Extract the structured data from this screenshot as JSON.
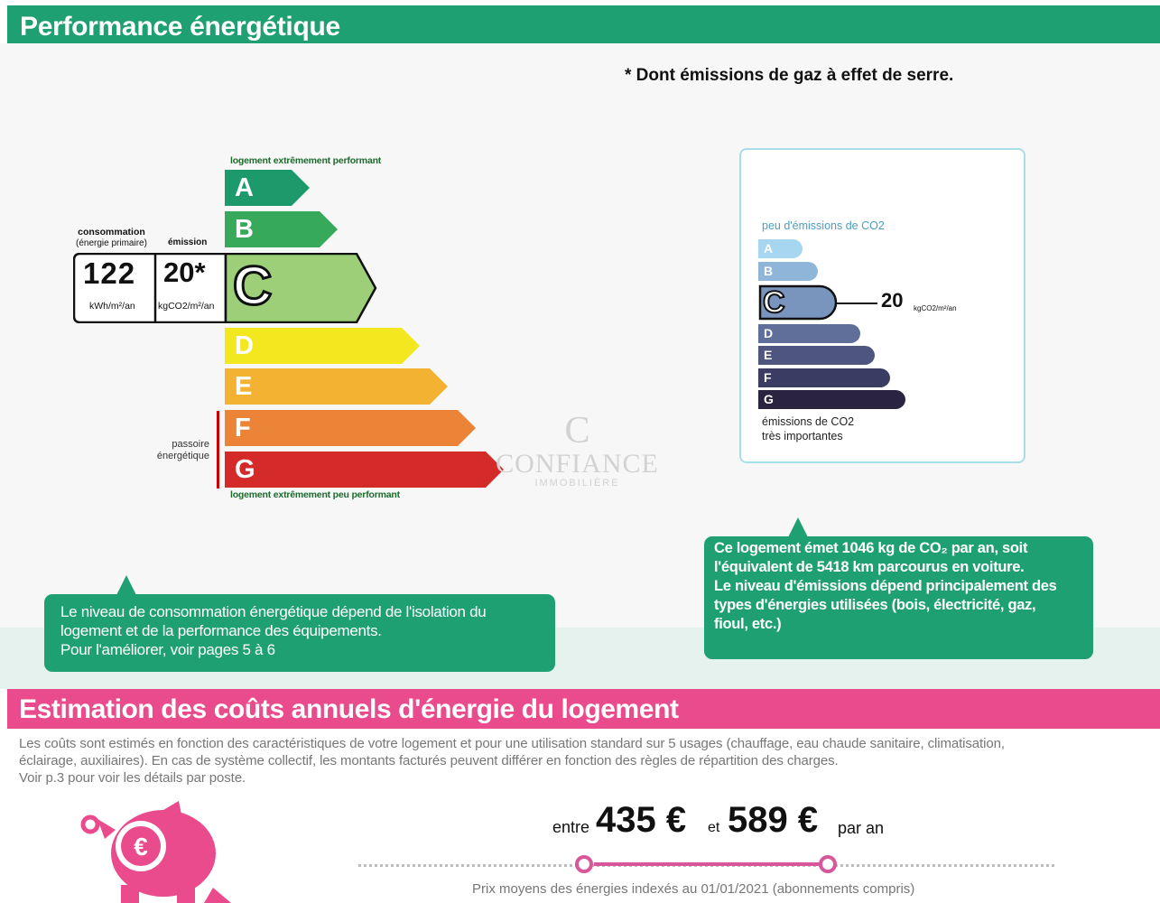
{
  "header": {
    "title": "Performance énergétique"
  },
  "footnote": "* Dont émissions de gaz à effet de serre.",
  "dpe": {
    "top_label": "logement extrêmement performant",
    "bottom_label": "logement extrêmement peu performant",
    "classes": [
      {
        "letter": "A",
        "color": "#1d9a6c"
      },
      {
        "letter": "B",
        "color": "#37a95b"
      },
      {
        "letter": "C",
        "color": "#9ccf78"
      },
      {
        "letter": "D",
        "color": "#f3e81f"
      },
      {
        "letter": "E",
        "color": "#f4b233"
      },
      {
        "letter": "F",
        "color": "#ec8437"
      },
      {
        "letter": "G",
        "color": "#d52a2a"
      }
    ],
    "current_class": "C",
    "consumption_label": "consommation",
    "consumption_sublabel": "(énergie primaire)",
    "emission_label": "émission",
    "consumption_value": "122",
    "consumption_unit": "kWh/m²/an",
    "emission_value": "20*",
    "emission_unit": "kgCO2/m²/an",
    "passoire_label": "passoire énergétique"
  },
  "watermark": {
    "name": "CONFIANCE",
    "sub": "IMMOBILIÈRE"
  },
  "ges": {
    "top_label": "peu d'émissions de CO2",
    "bottom_label_1": "émissions de CO2",
    "bottom_label_2": "très importantes",
    "classes": [
      {
        "letter": "A",
        "color": "#a6d6f0"
      },
      {
        "letter": "B",
        "color": "#8fb5d9"
      },
      {
        "letter": "C",
        "color": "#7995bd"
      },
      {
        "letter": "D",
        "color": "#5f6f99"
      },
      {
        "letter": "E",
        "color": "#4e5680"
      },
      {
        "letter": "F",
        "color": "#3b3c63"
      },
      {
        "letter": "G",
        "color": "#2a2440"
      }
    ],
    "current_class": "C",
    "value": "20",
    "unit": "kgCO2/m²/an"
  },
  "callouts": {
    "consumption": [
      "Le niveau de consommation énergétique dépend de l'isolation du",
      "logement et de la performance des équipements.",
      "Pour l'améliorer, voir pages 5 à 6"
    ],
    "emission": [
      "Ce logement émet 1046  kg de CO₂ par an, soit",
      "l'équivalent de 5418 km parcourus en voiture.",
      "Le niveau d'émissions dépend principalement des",
      "types d'énergies utilisées (bois, électricité, gaz,",
      "fioul, etc.)"
    ]
  },
  "costs": {
    "title": "Estimation des coûts annuels d'énergie du logement",
    "description_1": "Les coûts sont estimés en fonction des caractéristiques de votre logement et pour une utilisation standard sur 5 usages (chauffage, eau chaude sanitaire, climatisation,",
    "description_2": "éclairage, auxiliaires). En cas de système collectif, les montants facturés peuvent différer en fonction des règles de répartition des charges.",
    "description_3": "Voir p.3 pour voir les détails par poste.",
    "between": "entre",
    "min": "435 €",
    "and": "et",
    "max": "589 €",
    "per_year": "par an",
    "prices_note": "Prix moyens des énergies indexés au 01/01/2021  (abonnements compris)",
    "accent_color": "#e94b8c"
  }
}
